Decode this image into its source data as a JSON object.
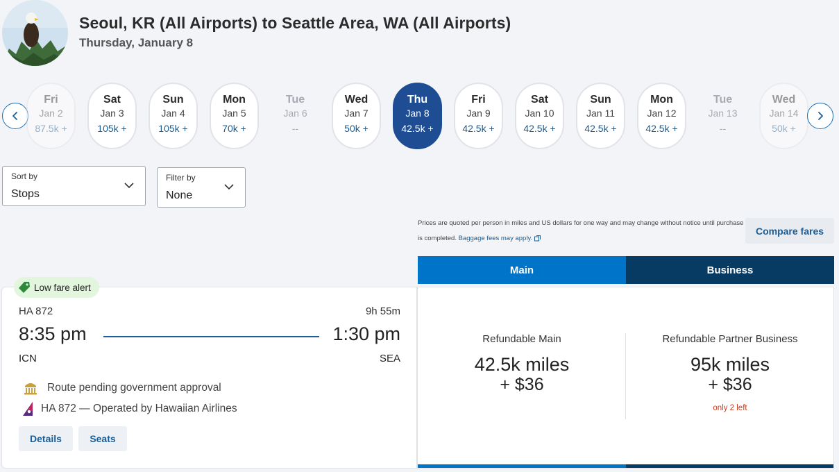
{
  "header": {
    "title": "Seoul, KR (All Airports) to Seattle Area, WA (All Airports)",
    "date": "Thursday, January 8"
  },
  "days": [
    {
      "dow": "Fri",
      "date": "Jan 2",
      "price": "87.5k +"
    },
    {
      "dow": "Sat",
      "date": "Jan 3",
      "price": "105k +"
    },
    {
      "dow": "Sun",
      "date": "Jan 4",
      "price": "105k +"
    },
    {
      "dow": "Mon",
      "date": "Jan 5",
      "price": "70k +"
    },
    {
      "dow": "Tue",
      "date": "Jan 6",
      "price": "--"
    },
    {
      "dow": "Wed",
      "date": "Jan 7",
      "price": "50k +"
    },
    {
      "dow": "Thu",
      "date": "Jan 8",
      "price": "42.5k +"
    },
    {
      "dow": "Fri",
      "date": "Jan 9",
      "price": "42.5k +"
    },
    {
      "dow": "Sat",
      "date": "Jan 10",
      "price": "42.5k +"
    },
    {
      "dow": "Sun",
      "date": "Jan 11",
      "price": "42.5k +"
    },
    {
      "dow": "Mon",
      "date": "Jan 12",
      "price": "42.5k +"
    },
    {
      "dow": "Tue",
      "date": "Jan 13",
      "price": "--"
    },
    {
      "dow": "Wed",
      "date": "Jan 14",
      "price": "50k +"
    }
  ],
  "sort": {
    "label": "Sort by",
    "value": "Stops"
  },
  "filter": {
    "label": "Filter by",
    "value": "None"
  },
  "disclaimer": {
    "text": "Prices are quoted per person in miles and US dollars for one way and may change without notice until purchase is completed.",
    "link": "Baggage fees may apply."
  },
  "compare_label": "Compare fares",
  "tabs": {
    "main": "Main",
    "business": "Business"
  },
  "flight": {
    "badge": "Low fare alert",
    "number": "HA 872",
    "duration": "9h 55m",
    "dep_time": "8:35 pm",
    "arr_time": "1:30 pm",
    "dep_code": "ICN",
    "arr_code": "SEA",
    "notice": "Route pending government approval",
    "operated": "HA 872 — Operated by Hawaiian Airlines",
    "details_label": "Details",
    "seats_label": "Seats"
  },
  "fares": {
    "main": {
      "name": "Refundable Main",
      "miles": "42.5k miles",
      "cash": "+ $36"
    },
    "business": {
      "name": "Refundable Partner Business",
      "miles": "95k miles",
      "cash": "+ $36",
      "remaining": "only 2 left"
    }
  },
  "colors": {
    "brand_blue": "#0074c8",
    "navy": "#073b63",
    "selected_day": "#1e4d93",
    "alert_green": "#e2f5dd",
    "warning_red": "#c73c1f"
  }
}
